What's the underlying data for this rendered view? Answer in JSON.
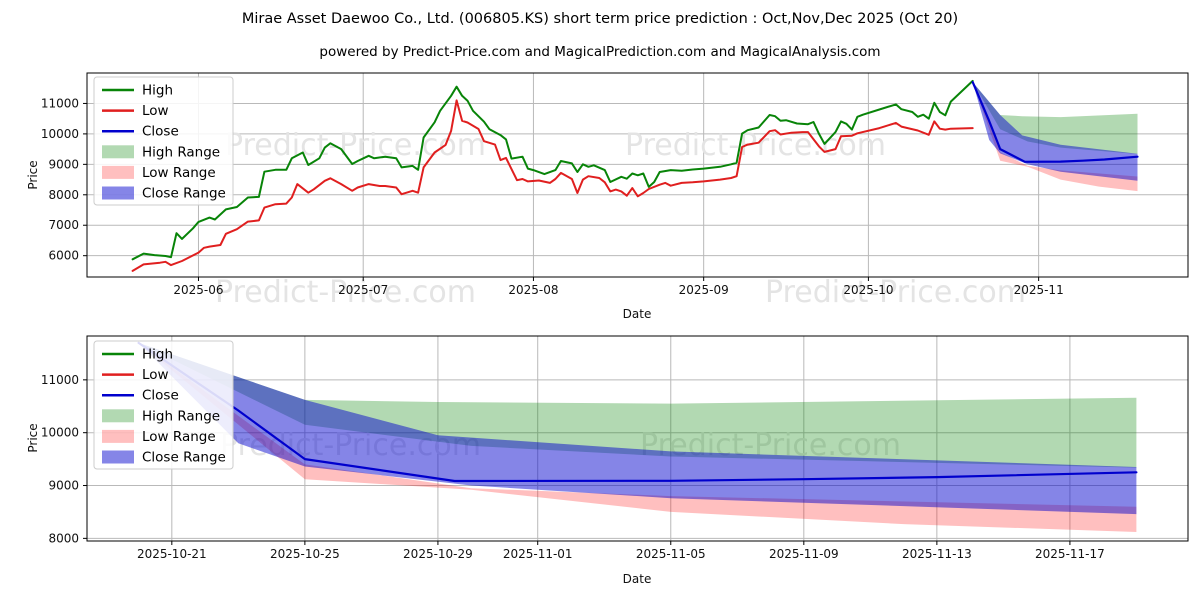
{
  "title": "Mirae Asset Daewoo Co., Ltd. (006805.KS) short term price prediction : Oct,Nov,Dec 2025 (Oct 20)",
  "subtitle": "powered by Predict-Price.com and MagicalPrediction.com and MagicalAnalysis.com",
  "watermark": "Predict-Price.com",
  "colors": {
    "high": "#088408",
    "low": "#e01f1f",
    "close": "#0000cd",
    "high_range": "rgba(0,128,0,0.30)",
    "low_range": "rgba(255,0,0,0.25)",
    "close_range": "rgba(0,0,205,0.48)",
    "grid": "#b9b9b9",
    "spine": "#000000",
    "watermark": "#e4e4e4",
    "legend_border": "#cccccc"
  },
  "legend": {
    "items": [
      {
        "label": "High",
        "swatch": "line",
        "color": "high"
      },
      {
        "label": "Low",
        "swatch": "line",
        "color": "low"
      },
      {
        "label": "Close",
        "swatch": "line",
        "color": "close"
      },
      {
        "label": "High Range",
        "swatch": "patch",
        "color": "high_range"
      },
      {
        "label": "Low Range",
        "swatch": "patch",
        "color": "low_range"
      },
      {
        "label": "Close Range",
        "swatch": "patch",
        "color": "close_range"
      }
    ]
  },
  "chart_data": {
    "note": "x values are day offsets; day 0 = 2025-05-20; prices in KRW",
    "history": {
      "type": "line",
      "xlabel": "Date",
      "ylabel": "Price",
      "xlim": [
        -8.3,
        192.2
      ],
      "ylim": [
        5300,
        12000
      ],
      "grid": true,
      "x_ticks": {
        "days": [
          12,
          42,
          73,
          104,
          134,
          165
        ],
        "labels": [
          "2025-06",
          "2025-07",
          "2025-08",
          "2025-09",
          "2025-10",
          "2025-11"
        ]
      },
      "y_ticks": [
        6000,
        7000,
        8000,
        9000,
        10000,
        11000
      ],
      "series": {
        "high": [
          [
            0,
            5880
          ],
          [
            2,
            6070
          ],
          [
            4,
            6020
          ],
          [
            6,
            5990
          ],
          [
            7,
            5950
          ],
          [
            8,
            6740
          ],
          [
            9,
            6550
          ],
          [
            11,
            6900
          ],
          [
            12,
            7110
          ],
          [
            14,
            7250
          ],
          [
            15,
            7190
          ],
          [
            17,
            7520
          ],
          [
            19,
            7600
          ],
          [
            21,
            7910
          ],
          [
            23,
            7930
          ],
          [
            24,
            8760
          ],
          [
            26,
            8820
          ],
          [
            28,
            8820
          ],
          [
            29,
            9200
          ],
          [
            31,
            9390
          ],
          [
            32,
            8980
          ],
          [
            34,
            9200
          ],
          [
            35,
            9550
          ],
          [
            36,
            9690
          ],
          [
            38,
            9500
          ],
          [
            40,
            9010
          ],
          [
            41,
            9110
          ],
          [
            43,
            9280
          ],
          [
            44,
            9200
          ],
          [
            46,
            9250
          ],
          [
            48,
            9200
          ],
          [
            49,
            8900
          ],
          [
            51,
            8950
          ],
          [
            52,
            8820
          ],
          [
            53,
            9880
          ],
          [
            55,
            10380
          ],
          [
            56,
            10760
          ],
          [
            58,
            11250
          ],
          [
            59,
            11550
          ],
          [
            60,
            11250
          ],
          [
            61,
            11090
          ],
          [
            62,
            10760
          ],
          [
            64,
            10400
          ],
          [
            65,
            10150
          ],
          [
            67,
            9960
          ],
          [
            68,
            9820
          ],
          [
            69,
            9190
          ],
          [
            71,
            9250
          ],
          [
            72,
            8860
          ],
          [
            73,
            8810
          ],
          [
            75,
            8680
          ],
          [
            77,
            8810
          ],
          [
            78,
            9110
          ],
          [
            80,
            9030
          ],
          [
            81,
            8750
          ],
          [
            82,
            9000
          ],
          [
            83,
            8920
          ],
          [
            84,
            8970
          ],
          [
            86,
            8810
          ],
          [
            87,
            8420
          ],
          [
            89,
            8590
          ],
          [
            90,
            8530
          ],
          [
            91,
            8700
          ],
          [
            92,
            8640
          ],
          [
            93,
            8700
          ],
          [
            94,
            8260
          ],
          [
            95,
            8420
          ],
          [
            96,
            8750
          ],
          [
            98,
            8810
          ],
          [
            100,
            8790
          ],
          [
            102,
            8830
          ],
          [
            104,
            8860
          ],
          [
            107,
            8920
          ],
          [
            109,
            9000
          ],
          [
            110,
            9050
          ],
          [
            111,
            10010
          ],
          [
            112,
            10120
          ],
          [
            114,
            10210
          ],
          [
            116,
            10620
          ],
          [
            117,
            10580
          ],
          [
            118,
            10430
          ],
          [
            119,
            10450
          ],
          [
            121,
            10340
          ],
          [
            123,
            10320
          ],
          [
            124,
            10390
          ],
          [
            125,
            10000
          ],
          [
            126,
            9670
          ],
          [
            128,
            10060
          ],
          [
            129,
            10410
          ],
          [
            130,
            10330
          ],
          [
            131,
            10140
          ],
          [
            132,
            10560
          ],
          [
            133,
            10630
          ],
          [
            136,
            10800
          ],
          [
            139,
            10970
          ],
          [
            140,
            10810
          ],
          [
            142,
            10720
          ],
          [
            143,
            10560
          ],
          [
            144,
            10630
          ],
          [
            145,
            10500
          ],
          [
            146,
            11020
          ],
          [
            147,
            10720
          ],
          [
            148,
            10610
          ],
          [
            149,
            11060
          ],
          [
            153,
            11740
          ]
        ],
        "low": [
          [
            0,
            5500
          ],
          [
            2,
            5715
          ],
          [
            5,
            5770
          ],
          [
            6,
            5800
          ],
          [
            7,
            5690
          ],
          [
            9,
            5825
          ],
          [
            12,
            6100
          ],
          [
            13,
            6260
          ],
          [
            14,
            6300
          ],
          [
            16,
            6350
          ],
          [
            17,
            6720
          ],
          [
            19,
            6870
          ],
          [
            21,
            7120
          ],
          [
            23,
            7160
          ],
          [
            24,
            7580
          ],
          [
            26,
            7690
          ],
          [
            28,
            7710
          ],
          [
            29,
            7910
          ],
          [
            30,
            8350
          ],
          [
            32,
            8070
          ],
          [
            33,
            8180
          ],
          [
            35,
            8460
          ],
          [
            36,
            8540
          ],
          [
            38,
            8350
          ],
          [
            40,
            8130
          ],
          [
            41,
            8240
          ],
          [
            43,
            8350
          ],
          [
            45,
            8290
          ],
          [
            46,
            8290
          ],
          [
            48,
            8240
          ],
          [
            49,
            8020
          ],
          [
            51,
            8130
          ],
          [
            52,
            8070
          ],
          [
            53,
            8900
          ],
          [
            55,
            9390
          ],
          [
            57,
            9640
          ],
          [
            58,
            10100
          ],
          [
            59,
            11100
          ],
          [
            60,
            10430
          ],
          [
            61,
            10375
          ],
          [
            63,
            10160
          ],
          [
            64,
            9760
          ],
          [
            66,
            9650
          ],
          [
            67,
            9140
          ],
          [
            68,
            9210
          ],
          [
            70,
            8480
          ],
          [
            71,
            8520
          ],
          [
            72,
            8440
          ],
          [
            74,
            8470
          ],
          [
            76,
            8390
          ],
          [
            77,
            8520
          ],
          [
            78,
            8720
          ],
          [
            80,
            8520
          ],
          [
            81,
            8060
          ],
          [
            82,
            8500
          ],
          [
            83,
            8610
          ],
          [
            85,
            8550
          ],
          [
            86,
            8410
          ],
          [
            87,
            8110
          ],
          [
            88,
            8170
          ],
          [
            89,
            8110
          ],
          [
            90,
            7970
          ],
          [
            91,
            8220
          ],
          [
            92,
            7950
          ],
          [
            93,
            8060
          ],
          [
            94,
            8190
          ],
          [
            96,
            8330
          ],
          [
            97,
            8390
          ],
          [
            98,
            8300
          ],
          [
            100,
            8390
          ],
          [
            102,
            8410
          ],
          [
            104,
            8440
          ],
          [
            107,
            8500
          ],
          [
            109,
            8550
          ],
          [
            110,
            8610
          ],
          [
            111,
            9570
          ],
          [
            112,
            9650
          ],
          [
            114,
            9710
          ],
          [
            116,
            10090
          ],
          [
            117,
            10120
          ],
          [
            118,
            9980
          ],
          [
            120,
            10040
          ],
          [
            122,
            10060
          ],
          [
            123,
            10060
          ],
          [
            125,
            9590
          ],
          [
            126,
            9410
          ],
          [
            128,
            9500
          ],
          [
            129,
            9920
          ],
          [
            131,
            9940
          ],
          [
            132,
            10020
          ],
          [
            136,
            10190
          ],
          [
            139,
            10360
          ],
          [
            140,
            10240
          ],
          [
            143,
            10110
          ],
          [
            145,
            9970
          ],
          [
            146,
            10410
          ],
          [
            147,
            10170
          ],
          [
            148,
            10140
          ],
          [
            149,
            10170
          ],
          [
            153,
            10190
          ]
        ]
      }
    },
    "forecast": {
      "type": "line+band",
      "xlabel": "Date",
      "ylabel": "Price",
      "xlim": [
        151.45,
        184.55
      ],
      "ylim": [
        7950,
        11830
      ],
      "grid": true,
      "x_ticks": {
        "days": [
          154,
          158,
          162,
          165,
          169,
          173,
          177,
          181
        ],
        "labels": [
          "2025-10-21",
          "2025-10-25",
          "2025-10-29",
          "2025-11-01",
          "2025-11-05",
          "2025-11-09",
          "2025-11-13",
          "2025-11-17"
        ]
      },
      "y_ticks": [
        8000,
        9000,
        10000,
        11000
      ]
    },
    "prediction": {
      "close": [
        [
          153,
          11700
        ],
        [
          156,
          10420
        ],
        [
          158,
          9500
        ],
        [
          162.5,
          9085
        ],
        [
          169,
          9090
        ],
        [
          173,
          9120
        ],
        [
          177,
          9160
        ],
        [
          183,
          9250
        ]
      ],
      "high_range": {
        "upper": [
          [
            153,
            11700
          ],
          [
            158,
            10620
          ],
          [
            162,
            10580
          ],
          [
            169,
            10550
          ],
          [
            183,
            10660
          ]
        ],
        "lower": [
          [
            153,
            11700
          ],
          [
            158,
            10150
          ],
          [
            163,
            9750
          ],
          [
            169,
            9550
          ],
          [
            183,
            9340
          ]
        ]
      },
      "low_range": {
        "upper": [
          [
            153,
            11700
          ],
          [
            158,
            9400
          ],
          [
            163,
            8950
          ],
          [
            169,
            8800
          ],
          [
            183,
            8600
          ]
        ],
        "lower": [
          [
            153,
            11700
          ],
          [
            158,
            9120
          ],
          [
            163,
            8920
          ],
          [
            169,
            8500
          ],
          [
            176,
            8270
          ],
          [
            183,
            8120
          ]
        ]
      },
      "close_range": {
        "upper": [
          [
            153,
            11700
          ],
          [
            158,
            10620
          ],
          [
            162,
            9950
          ],
          [
            169,
            9645
          ],
          [
            183,
            9350
          ]
        ],
        "lower": [
          [
            153,
            11700
          ],
          [
            156,
            9800
          ],
          [
            158,
            9360
          ],
          [
            163,
            9000
          ],
          [
            169,
            8760
          ],
          [
            183,
            8460
          ]
        ]
      }
    }
  }
}
